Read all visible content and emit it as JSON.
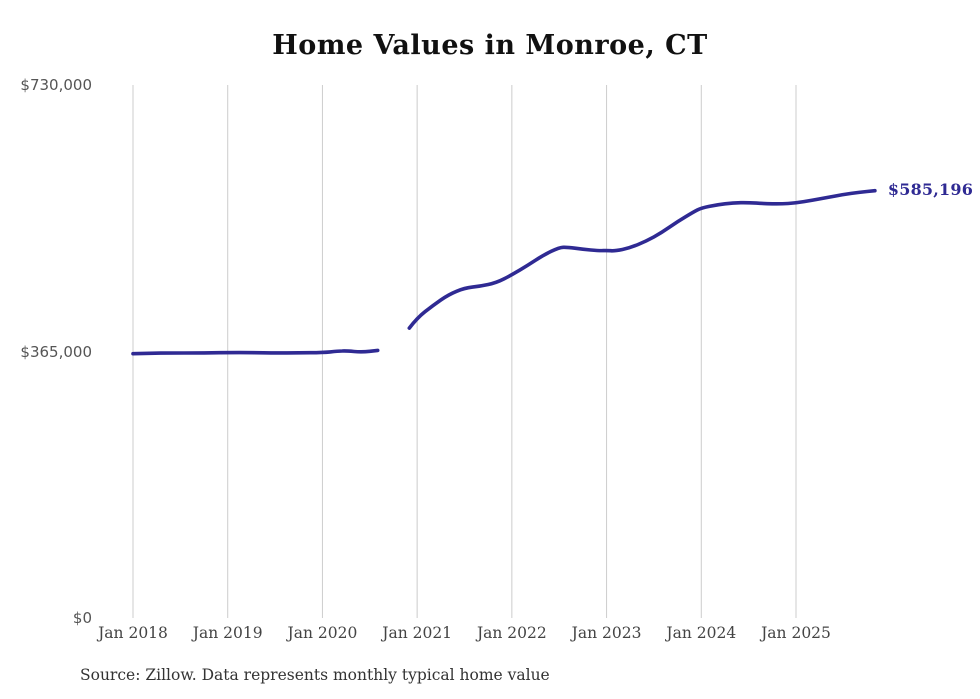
{
  "page": {
    "title": "Home Values in Monroe, CT",
    "source_note": "Source: Zillow. Data represents monthly typical home value"
  },
  "colors": {
    "background": "#ffffff",
    "title": "#111111",
    "line": "#2f2a93",
    "end_label": "#2f2a93",
    "gridline": "#cccccc",
    "y_label": "#555555",
    "x_label": "#444444",
    "source": "#333333"
  },
  "chart_data": {
    "type": "line",
    "title": "Home Values in Monroe, CT",
    "unit": "USD",
    "grid": "vertical-only",
    "legend": "none",
    "end_label": "$585,196",
    "end_value": 585196,
    "y_axis": {
      "range": [
        0,
        730000
      ],
      "ticks": [
        {
          "value": 0,
          "label": "$0"
        },
        {
          "value": 365000,
          "label": "$365,000"
        },
        {
          "value": 730000,
          "label": "$730,000"
        }
      ]
    },
    "x_axis": {
      "ticks": [
        {
          "month": "2018-01",
          "label": "Jan 2018"
        },
        {
          "month": "2019-01",
          "label": "Jan 2019"
        },
        {
          "month": "2020-01",
          "label": "Jan 2020"
        },
        {
          "month": "2021-01",
          "label": "Jan 2021"
        },
        {
          "month": "2022-01",
          "label": "Jan 2022"
        },
        {
          "month": "2023-01",
          "label": "Jan 2023"
        },
        {
          "month": "2024-01",
          "label": "Jan 2024"
        },
        {
          "month": "2025-01",
          "label": "Jan 2025"
        }
      ]
    },
    "series": [
      {
        "name": "Monthly typical home value",
        "gap_note": "no data Sep 2020 - Nov 2020",
        "points": [
          [
            "2018-01",
            362000
          ],
          [
            "2018-03",
            362500
          ],
          [
            "2018-06",
            363000
          ],
          [
            "2018-09",
            363000
          ],
          [
            "2019-01",
            363500
          ],
          [
            "2019-04",
            363500
          ],
          [
            "2019-07",
            363000
          ],
          [
            "2019-10",
            363200
          ],
          [
            "2020-01",
            363500
          ],
          [
            "2020-03",
            365500
          ],
          [
            "2020-04",
            366000
          ],
          [
            "2020-06",
            364000
          ],
          [
            "2020-08",
            366500
          ],
          [
            "2020-10",
            null
          ],
          [
            "2020-12",
            397000
          ],
          [
            "2021-01",
            411000
          ],
          [
            "2021-03",
            428000
          ],
          [
            "2021-05",
            443000
          ],
          [
            "2021-07",
            452000
          ],
          [
            "2021-09",
            454500
          ],
          [
            "2021-11",
            459000
          ],
          [
            "2022-01",
            470000
          ],
          [
            "2022-03",
            483000
          ],
          [
            "2022-05",
            497000
          ],
          [
            "2022-07",
            507500
          ],
          [
            "2022-08",
            508000
          ],
          [
            "2022-10",
            505000
          ],
          [
            "2022-12",
            503000
          ],
          [
            "2023-01",
            503500
          ],
          [
            "2023-02",
            502500
          ],
          [
            "2023-04",
            507000
          ],
          [
            "2023-06",
            516000
          ],
          [
            "2023-08",
            528000
          ],
          [
            "2023-10",
            543000
          ],
          [
            "2023-12",
            556000
          ],
          [
            "2024-01",
            561500
          ],
          [
            "2024-03",
            566000
          ],
          [
            "2024-05",
            568500
          ],
          [
            "2024-07",
            569000
          ],
          [
            "2024-09",
            567500
          ],
          [
            "2024-11",
            567000
          ],
          [
            "2025-01",
            568500
          ],
          [
            "2025-03",
            572000
          ],
          [
            "2025-05",
            576000
          ],
          [
            "2025-07",
            580000
          ],
          [
            "2025-09",
            583000
          ],
          [
            "2025-11",
            585196
          ]
        ]
      }
    ]
  }
}
